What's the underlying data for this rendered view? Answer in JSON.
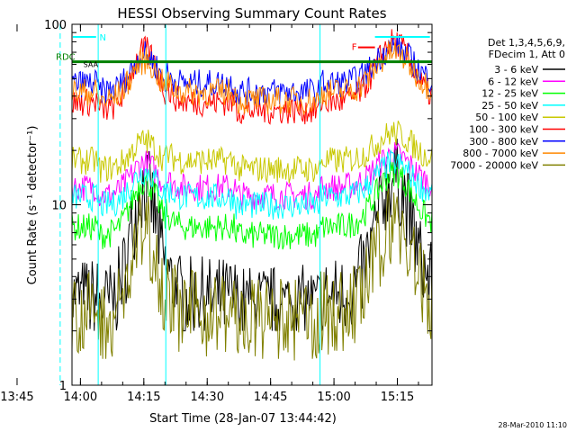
{
  "chart_data": {
    "type": "line",
    "title": "HESSI Observing Summary Count Rates",
    "xlabel": "Start Time (28-Jan-07 13:44:42)",
    "ylabel": "Count Rate (s⁻¹ detector⁻¹)",
    "yscale": "log",
    "ylim": [
      1,
      100
    ],
    "xlim_minutes": [
      13.3,
      98.5
    ],
    "x_tick_labels": [
      "13:45",
      "14:00",
      "14:15",
      "14:30",
      "14:45",
      "15:00",
      "15:15"
    ],
    "x_tick_minutes": [
      0.3,
      15.3,
      30.3,
      45.3,
      60.3,
      75.3,
      90.3
    ],
    "y_tick_labels": [
      "1",
      "10",
      "100"
    ],
    "legend_header": [
      "Det 1,3,4,5,6,9,",
      "FDecim 1, Att 0"
    ],
    "timestamp": "28-Mar-2010 11:10",
    "flag_labels": {
      "n": "N",
      "rdc": "RDC",
      "f": "F",
      "saa": "SAA"
    },
    "series": [
      {
        "name": "3 - 6 keV",
        "color": "#000000",
        "night": 3.0,
        "peak": 14.0,
        "floor": 2.0
      },
      {
        "name": "6 - 12 keV",
        "color": "#ff00ff",
        "night": 12.5,
        "peak": 19.0
      },
      {
        "name": "12 - 25 keV",
        "color": "#00ff00",
        "night": 7.5,
        "peak": 15.0
      },
      {
        "name": "25 - 50 keV",
        "color": "#00ffff",
        "night": 11.0,
        "peak": 17.0
      },
      {
        "name": "50 - 100 keV",
        "color": "#c8c800",
        "night": 17.5,
        "peak": 25.0
      },
      {
        "name": "100 - 300 keV",
        "color": "#ff0000",
        "night": 37.0,
        "peak": 80.0
      },
      {
        "name": "300 - 800 keV",
        "color": "#0000ff",
        "night": 47.0,
        "peak": 75.0
      },
      {
        "name": "800 - 7000 keV",
        "color": "#ff8800",
        "night": 42.0,
        "peak": 70.0
      },
      {
        "name": "7000 - 20000 keV",
        "color": "#808000",
        "night": 2.5,
        "peak": 8.0,
        "floor": 1.0
      }
    ],
    "day_intervals_minutes": [
      [
        10.5,
        19.5
      ],
      [
        35.5,
        52.0
      ],
      [
        72.0,
        98.5
      ]
    ],
    "rdc_level": 62
  }
}
